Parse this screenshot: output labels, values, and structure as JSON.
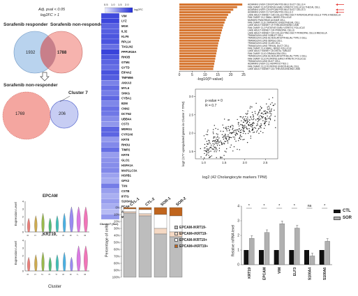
{
  "venn": {
    "criteria_line1": "Adj. pval < 0.05",
    "criteria_line2": "log2FC > 1",
    "left_title": "Sorafenib responder",
    "right_title": "Sorafenib non-responder",
    "left_count": "1932",
    "overlap_count": "1788",
    "bottom_title": "Sorafenib non-responder",
    "cluster_title": "Cluster 7",
    "bottom_left_count": "1769",
    "bottom_overlap_count": "206",
    "colors": {
      "blue": "#b9d3ee",
      "red": "#f4a6a0",
      "overlap": "#c87f8a"
    }
  },
  "heatmap": {
    "scale_ticks": [
      "0.5",
      "1.0",
      "1.5",
      "2.0"
    ],
    "scale_label": "log2FC",
    "genes": [
      "VIM",
      "LYZ",
      "MGK",
      "IL32",
      "KLF6",
      "RPL14",
      "TAGLN2",
      "PPP1R15A",
      "RHOB",
      "GTM4",
      "GYTD",
      "EIF4A2",
      "TMFM66",
      "ANXA3",
      "MYL6",
      "SHKG",
      "CYBA1",
      "B2M",
      "CNN2",
      "DCTN2",
      "UBB4A",
      "CST3",
      "MDRG1",
      "CYP2A6",
      "KRT8",
      "RHOU",
      "TIMP2",
      "KRT8",
      "GLO1",
      "HSPA1A",
      "MAP1LC3A",
      "HSPB1",
      "GPX2",
      "TXN",
      "CSTB",
      "IFITG",
      "S100A6",
      "PCAP",
      "ATP1B1",
      "MTSDH"
    ],
    "xlabel": "Cluster7 (Sor)",
    "colors": {
      "low": "#eef0ff",
      "high": "#1f2bd6"
    }
  },
  "go_bar": {
    "terms": [
      "AIZARANI LIVER C39 EPCAM POS BILE DUCT CELLS 4",
      "FAN OVARY CL9 PUTATIVE EARLY ATRETIC FOLLICLE THECAL CELL",
      "AIZARANI LIVER C24 EPCAM POS BILE DUCT CELLS 3",
      "AIZARANI LIVER C17 EPCAM POS CELLS 2",
      "LAKE ADULT KIDNEY C28 COLLECTING DUCT INTERCALATED CELLS TYPE A MEDULLA",
      "FAN OVARY CL1 SMALL MIXED FOLLICLE",
      "MURARO PANCREAS ACINAR CELL",
      "FAN OVARY CL6 LYMPHATIC ENDOTHELIAL CELL",
      "LAKE ADULT KIDNEY C9 THIN ASCENDING LIMB",
      "FAN OVARY CL2 PUTATIVE EARLY ATRETIC FOLLICLE",
      "LAKE ADULT KIDNEY C24 PRINCIPAL CELLS",
      "LAKE ADULT KIDNEY C20 COLLECTING DUCT PRINCIPAL CELLS MEDULLA",
      "TRAVAGLINI LUNG GOBLET CELL",
      "TRAVAGLINI LUNG ALVEOLAR EPITHELIAL TYPE 2 CELL",
      "TRAVAGLINI LUNG SERous CELL",
      "TRAVAGLINI LUNG CLUB CELL",
      "TRAVAGLINI LUNG TRIVIAL DUCT CELL",
      "FAN OVARY CL4 SMALL MIXED FOLLICLE",
      "LAKE ADULT KIDNEY C6 DISTAL TUBULE",
      "FAN OVARY CL10 GRANULOSA CELL",
      "TRAVAGLINI LUNG ALVEOLAR EPITHELIAL TYPE 1 CELL",
      "FAN OVARY CL10 PUTATIVE EARLY ATRETIC FOLLICLE",
      "TRAVAGLINI LUNG DUCT CELL",
      "AIZARANI LIVER C11 HEPATOCYTES 1",
      "FAN OVARY CL12 PUTATIVE ENDOTHELIAL CELL",
      "LAKE ADULT KIDNEY C16 THIN ASCENDING LIMB"
    ],
    "values": [
      24.5,
      22.5,
      21.0,
      20.0,
      19.0,
      18.5,
      18.0,
      17.6,
      17.2,
      16.9,
      16.6,
      16.3,
      16.0,
      15.8,
      15.5,
      15.2,
      15.0,
      14.8,
      14.6,
      14.4,
      14.2,
      14.0,
      13.8,
      13.6,
      13.4,
      13.2
    ],
    "xticks": [
      "0",
      "5",
      "10",
      "15",
      "20",
      "25"
    ],
    "xlabel": "-log10(P-value)",
    "color": "#d6752f",
    "arrow_color": "#e53935"
  },
  "scatter": {
    "annotation1": "p-value = 0",
    "annotation2": "R = 0.7",
    "ylabel": "log2 (177 upregulated genes in Cluster 7 TPM)",
    "xlabel": "log2 (42 Cholangiocyte markers TPM)",
    "xticks": [
      "1.0",
      "1.5",
      "2.0",
      "2.5"
    ],
    "yticks": [
      "1.5",
      "2.0",
      "2.5",
      "3.0"
    ]
  },
  "violin": {
    "genes": [
      "EPCAM",
      "KRT19"
    ],
    "ylabel": "Expression Level",
    "xlabel": "Cluster",
    "clusters": [
      "0",
      "1",
      "2",
      "3",
      "4",
      "5",
      "6",
      "7",
      "8"
    ],
    "epcam_yticks": [
      "0",
      "1",
      "2",
      "3",
      "4"
    ],
    "krt19_yticks": [
      "0",
      "1",
      "2",
      "3",
      "4"
    ],
    "colors": [
      "#e8706a",
      "#c9a23d",
      "#8fb23a",
      "#3fb56a",
      "#2cb9b0",
      "#36a9e1",
      "#8e7ff0",
      "#d76ae0",
      "#ef66b0"
    ]
  },
  "stacked": {
    "categories": [
      "CTL-1",
      "CTL-2",
      "SOR-1",
      "SOR-2"
    ],
    "ylabel": "Percentage of cells",
    "yticks": [
      "0%",
      "10%",
      "20%",
      "30%",
      "40%",
      "50%",
      "60%",
      "70%",
      "80%",
      "90%",
      "100%"
    ],
    "legend": [
      "EPCAM-/KRT19-",
      "EPCAM+/KRT19-",
      "EPCAM-/KRT19+",
      "EPCAM+/KRT19+"
    ],
    "colors": [
      "#bdbdbd",
      "#f5d9c4",
      "#ffffff",
      "#c0651d"
    ]
  },
  "qpcr": {
    "categories": [
      "KRT19",
      "EPCAM",
      "VIM",
      "ELF3",
      "S100A4",
      "S100A6"
    ],
    "ctl": [
      1.0,
      1.0,
      1.0,
      1.0,
      1.0,
      1.0
    ],
    "sor": [
      1.8,
      2.2,
      2.8,
      2.5,
      0.6,
      1.6
    ],
    "significance": [
      "*",
      "*",
      "*",
      "*",
      "ns",
      "*"
    ],
    "ylabel": "Relative mRNA level",
    "yticks": [
      "0",
      "1",
      "2",
      "3",
      "4"
    ],
    "legend": [
      "CTL",
      "SOR"
    ],
    "colors": {
      "ctl": "#111111",
      "sor": "#b0b0b0"
    }
  }
}
